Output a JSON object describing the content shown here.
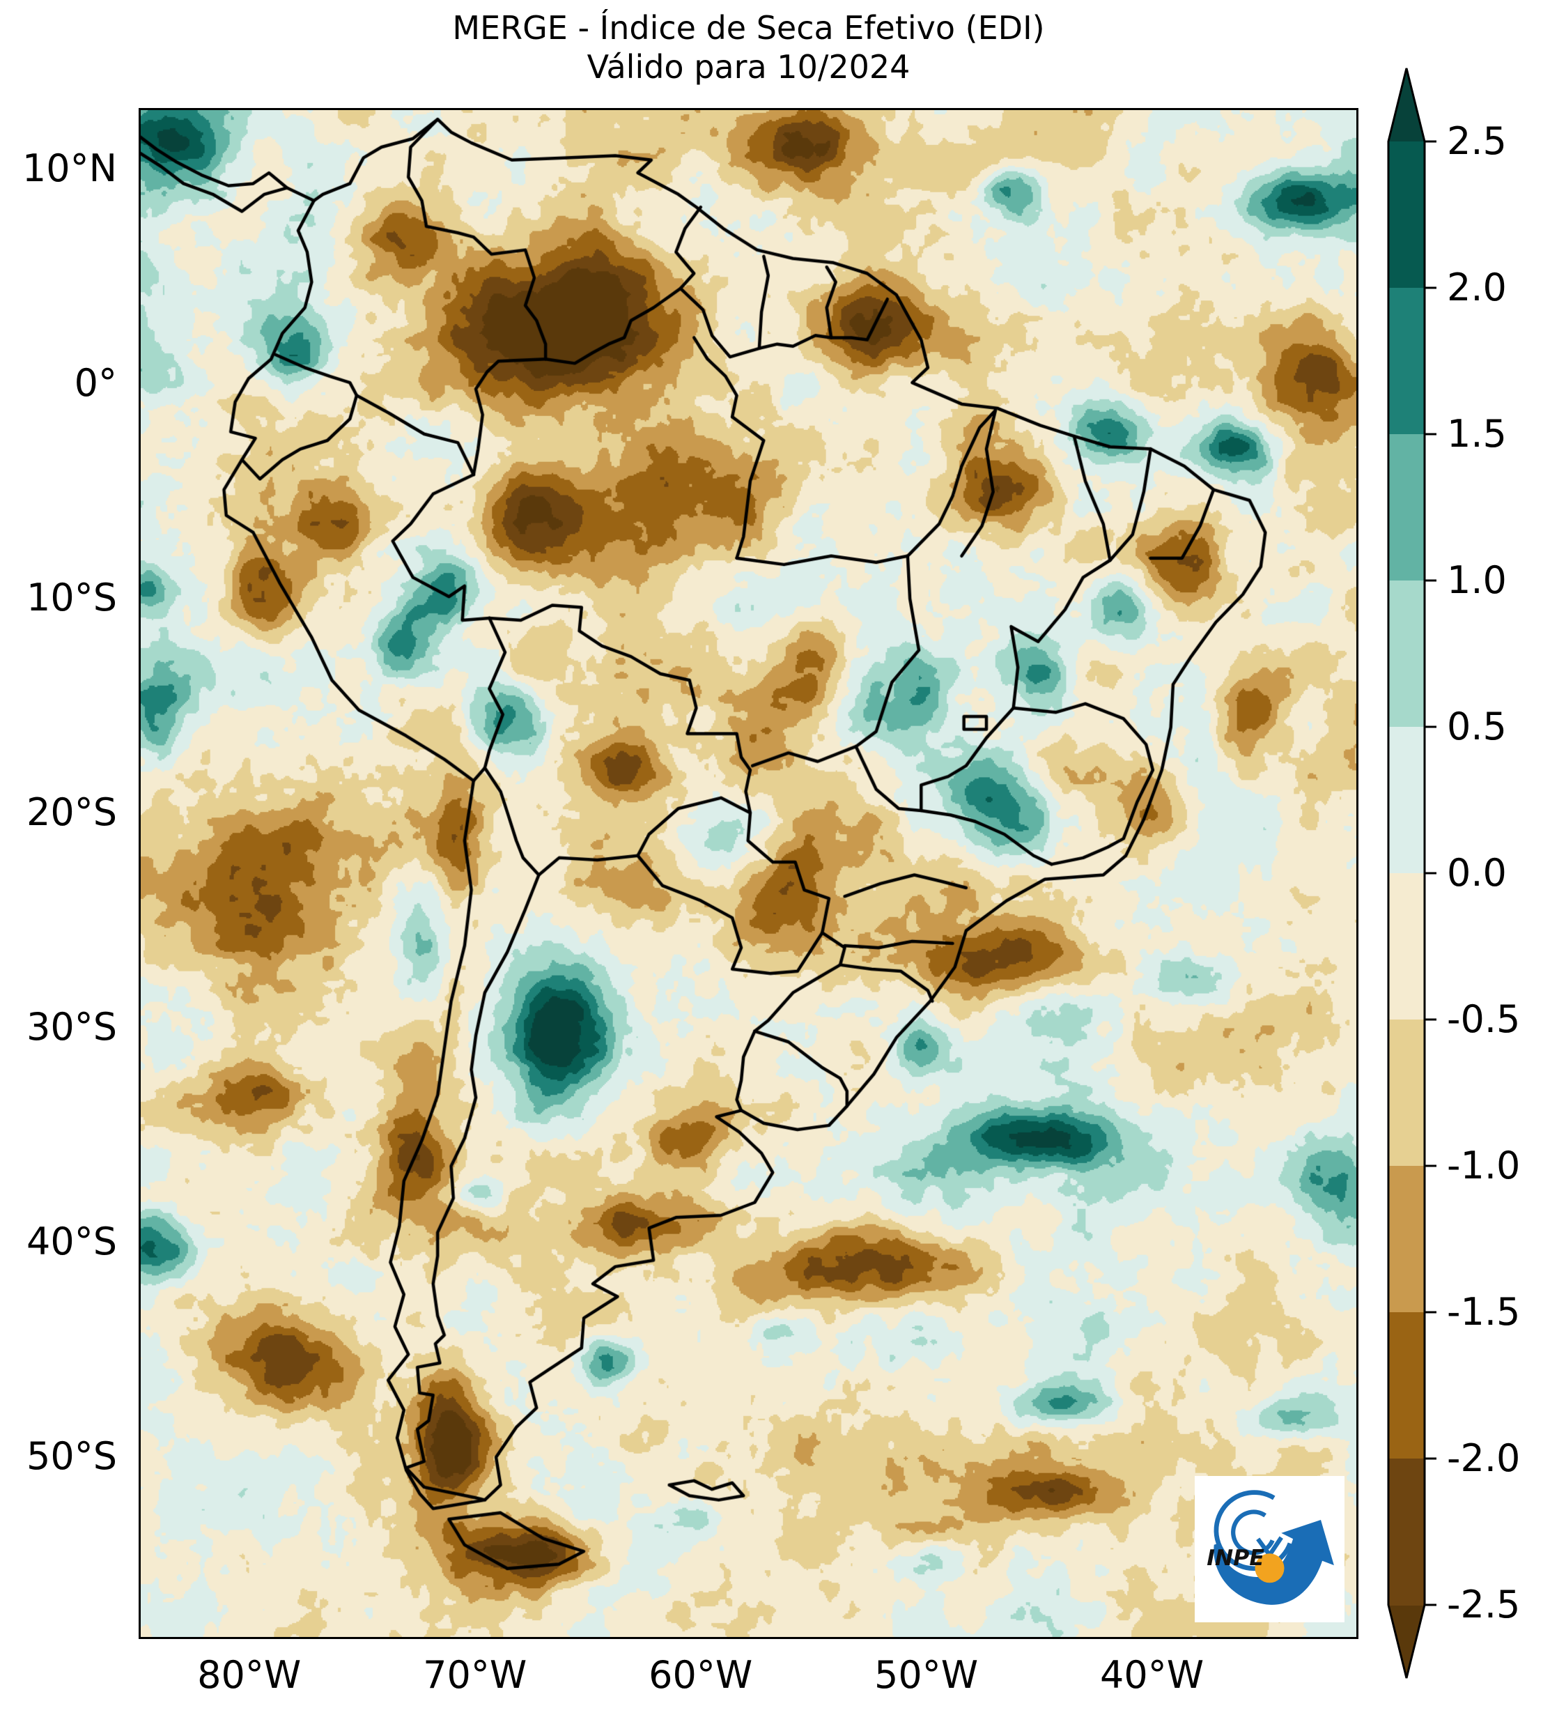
{
  "title": {
    "line1": "MERGE - Índice de Seca Efetivo (EDI)",
    "line2": "Válido para 10/2024"
  },
  "axes": {
    "y_ticks": [
      {
        "label": "10°N",
        "lat": 10
      },
      {
        "label": "0°",
        "lat": 0
      },
      {
        "label": "10°S",
        "lat": -10
      },
      {
        "label": "20°S",
        "lat": -20
      },
      {
        "label": "30°S",
        "lat": -30
      },
      {
        "label": "40°S",
        "lat": -40
      },
      {
        "label": "50°S",
        "lat": -50
      }
    ],
    "x_ticks": [
      {
        "label": "80°W",
        "lon": -80
      },
      {
        "label": "70°W",
        "lon": -70
      },
      {
        "label": "60°W",
        "lon": -60
      },
      {
        "label": "50°W",
        "lon": -50
      },
      {
        "label": "40°W",
        "lon": -40
      }
    ]
  },
  "colorbar": {
    "extend": "both",
    "ticks": [
      {
        "label": "2.5",
        "value": 2.5
      },
      {
        "label": "2.0",
        "value": 2.0
      },
      {
        "label": "1.5",
        "value": 1.5
      },
      {
        "label": "1.0",
        "value": 1.0
      },
      {
        "label": "0.5",
        "value": 0.5
      },
      {
        "label": "0.0",
        "value": 0.0
      },
      {
        "label": "-0.5",
        "value": -0.5
      },
      {
        "label": "-1.0",
        "value": -1.0
      },
      {
        "label": "-1.5",
        "value": -1.5
      },
      {
        "label": "-2.0",
        "value": -2.0
      },
      {
        "label": "-2.5",
        "value": -2.5
      }
    ]
  },
  "palette": {
    "levels": [
      -2.5,
      -2.0,
      -1.5,
      -1.0,
      -0.5,
      0.0,
      0.5,
      1.0,
      1.5,
      2.0,
      2.5
    ],
    "colors": [
      "#5a390b",
      "#6e4511",
      "#9a6414",
      "#c99a4e",
      "#e6d092",
      "#f5ebd0",
      "#dceeea",
      "#a6d9cb",
      "#62b3a4",
      "#1e8177",
      "#065a50",
      "#07423a"
    ],
    "border_color": "#000000"
  },
  "map": {
    "region": "South America",
    "variable": "Effective Drought Index (EDI)",
    "extent": {
      "lon_min": -84.9,
      "lon_max": -30.85,
      "lat_min": -58.5,
      "lat_max": 12.83
    },
    "noise": {
      "seed": 7,
      "base_offset": -0.3,
      "amplitude": 1.55,
      "octaves": [
        {
          "period": 110,
          "weight": 0.42
        },
        {
          "period": 40,
          "weight": 0.3
        },
        {
          "period": 15,
          "weight": 0.18
        },
        {
          "period": 5.5,
          "weight": 0.1
        }
      ]
    },
    "anomaly_features": [
      [
        -83.8,
        11.8,
        3.2,
        2.6,
        3.4
      ],
      [
        -78.0,
        1.8,
        1.6,
        1.8,
        2.2
      ],
      [
        -84.8,
        1.0,
        1.6,
        2.2,
        1.6
      ],
      [
        -68.6,
        -15.6,
        1.7,
        1.9,
        2.3
      ],
      [
        -66.6,
        -30.2,
        2.3,
        3.2,
        3.2
      ],
      [
        -72.6,
        -26.0,
        1.1,
        2.4,
        1.7
      ],
      [
        -46.8,
        -19.5,
        2.2,
        2.4,
        2.3
      ],
      [
        -45.0,
        -13.5,
        1.6,
        2.0,
        2.2
      ],
      [
        -53.0,
        -15.2,
        1.6,
        1.6,
        1.6
      ],
      [
        -50.3,
        -14.5,
        1.4,
        2.2,
        1.5
      ],
      [
        -41.2,
        -10.2,
        1.3,
        1.6,
        2.0
      ],
      [
        -42.2,
        -2.2,
        1.7,
        1.5,
        2.5
      ],
      [
        -36.2,
        -3.0,
        1.5,
        1.3,
        2.2
      ],
      [
        -33.2,
        8.6,
        2.8,
        1.5,
        2.7
      ],
      [
        -46.2,
        9.2,
        1.3,
        1.1,
        2.1
      ],
      [
        -45.2,
        -35.2,
        3.4,
        1.3,
        2.7
      ],
      [
        -31.8,
        -37.2,
        1.9,
        2.3,
        2.1
      ],
      [
        -64.2,
        -45.6,
        1.3,
        1.1,
        2.4
      ],
      [
        -84.2,
        -40.2,
        1.9,
        1.5,
        2.3
      ],
      [
        -44.2,
        -47.6,
        2.3,
        1.1,
        1.8
      ],
      [
        -33.8,
        -48.2,
        2.1,
        1.0,
        1.6
      ],
      [
        -58.6,
        -21.2,
        2.1,
        2.1,
        1.4
      ],
      [
        -60.2,
        -52.9,
        1.3,
        0.9,
        1.7
      ],
      [
        -50.0,
        -55.0,
        1.6,
        1.0,
        1.5
      ],
      [
        -38.2,
        -27.6,
        2.1,
        1.3,
        1.5
      ],
      [
        -50.2,
        -30.8,
        1.1,
        1.1,
        1.6
      ],
      [
        -71.2,
        -9.6,
        1.4,
        1.4,
        1.9
      ],
      [
        -73.5,
        -12.0,
        1.5,
        1.5,
        1.8
      ],
      [
        -84.0,
        -15.0,
        1.5,
        2.0,
        1.6
      ],
      [
        -84.5,
        -9.5,
        1.0,
        1.2,
        1.5
      ],
      [
        -69.8,
        -37.8,
        1.0,
        0.9,
        1.5
      ],
      [
        -56.8,
        -44.2,
        1.1,
        0.8,
        1.4
      ],
      [
        -67.0,
        2.6,
        5.8,
        3.6,
        -3.3
      ],
      [
        -73.2,
        6.8,
        2.2,
        2.0,
        -2.2
      ],
      [
        -67.5,
        -6.0,
        2.5,
        2.5,
        -2.2
      ],
      [
        -60.0,
        -5.2,
        4.2,
        2.6,
        -1.9
      ],
      [
        -52.4,
        2.8,
        2.6,
        2.1,
        -2.2
      ],
      [
        -55.2,
        11.2,
        2.7,
        1.9,
        -2.0
      ],
      [
        -32.8,
        0.6,
        2.7,
        2.7,
        -1.8
      ],
      [
        -47.0,
        -5.0,
        2.2,
        1.8,
        -1.8
      ],
      [
        -38.8,
        -8.8,
        2.4,
        2.4,
        -1.7
      ],
      [
        -35.8,
        -15.2,
        1.9,
        2.3,
        -1.6
      ],
      [
        -79.2,
        -23.2,
        4.2,
        3.2,
        -1.8
      ],
      [
        -70.8,
        -21.2,
        1.2,
        3.0,
        -1.5
      ],
      [
        -46.2,
        -26.8,
        4.6,
        1.7,
        -2.3
      ],
      [
        -40.0,
        -20.0,
        1.6,
        2.2,
        -1.7
      ],
      [
        -52.2,
        -41.2,
        4.2,
        1.7,
        -2.7
      ],
      [
        -63.2,
        -39.2,
        2.6,
        1.4,
        -2.1
      ],
      [
        -78.2,
        -45.8,
        3.2,
        2.6,
        -2.9
      ],
      [
        -71.2,
        -49.2,
        1.6,
        3.2,
        -2.5
      ],
      [
        -67.2,
        -54.6,
        3.2,
        1.6,
        -2.3
      ],
      [
        -44.2,
        -51.8,
        3.2,
        1.1,
        -1.9
      ],
      [
        -34.8,
        -53.2,
        2.7,
        1.7,
        -1.7
      ],
      [
        -60.8,
        -35.2,
        2.2,
        1.6,
        -1.3
      ],
      [
        -63.8,
        -17.8,
        1.6,
        1.3,
        -1.5
      ],
      [
        -55.0,
        -13.0,
        2.5,
        2.5,
        -1.5
      ],
      [
        -56.0,
        -23.5,
        2.0,
        2.0,
        -1.5
      ],
      [
        -72.8,
        -35.4,
        1.3,
        2.6,
        -1.7
      ],
      [
        -76.0,
        -6.5,
        1.7,
        1.7,
        -1.6
      ],
      [
        -79.5,
        -9.5,
        1.5,
        2.0,
        -1.4
      ],
      [
        -80.0,
        -33.0,
        2.6,
        1.6,
        -1.5
      ]
    ]
  },
  "logo": {
    "label": "INPE",
    "blue": "#1a6db6",
    "orange": "#f2a31f"
  }
}
